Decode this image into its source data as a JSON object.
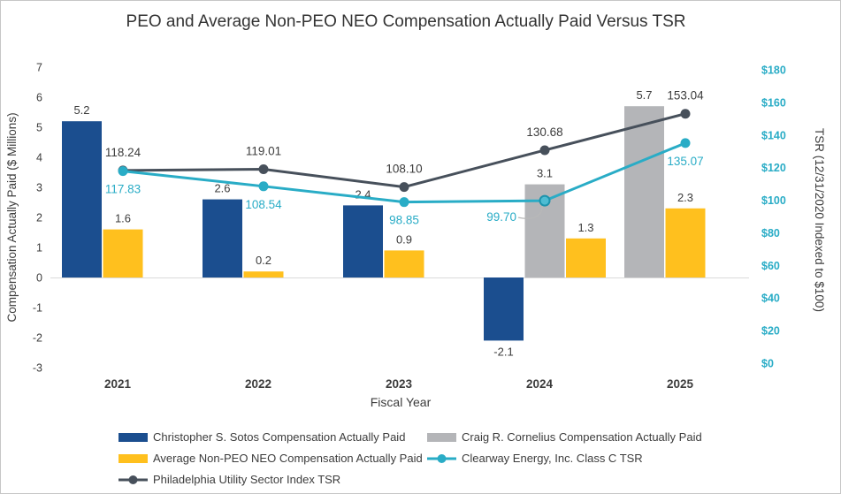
{
  "title": "PEO and Average Non-PEO NEO Compensation Actually Paid Versus TSR",
  "chart_data": {
    "type": "combo-bar-line",
    "categories": [
      "2021",
      "2022",
      "2023",
      "2024",
      "2025"
    ],
    "xlabel": "Fiscal Year",
    "left_axis": {
      "label": "Compensation Actually Paid ($ Millions)",
      "min": -3,
      "max": 7,
      "step": 1
    },
    "right_axis": {
      "label": "TSR (12/31/2020 Indexed to $100)",
      "min": 0,
      "max": 180,
      "step": 20,
      "prefix": "$"
    },
    "bar_series": [
      {
        "name": "Christopher S. Sotos Compensation Actually Paid",
        "color": "#1b4e8f",
        "values": [
          5.2,
          2.6,
          2.4,
          -2.1,
          null
        ]
      },
      {
        "name": "Craig R. Cornelius Compensation Actually Paid",
        "color": "#b4b5b8",
        "values": [
          null,
          null,
          null,
          3.1,
          5.7
        ]
      },
      {
        "name": "Average Non-PEO NEO Compensation Actually Paid",
        "color": "#ffc01e",
        "values": [
          1.6,
          0.2,
          0.9,
          1.3,
          2.3
        ]
      }
    ],
    "line_series": [
      {
        "name": "Philadelphia Utility Sector Index TSR",
        "color": "#47505b",
        "label_color": "#3c3c3c",
        "label_position": "above",
        "values": [
          118.24,
          119.01,
          108.1,
          130.68,
          153.04
        ]
      },
      {
        "name": "Clearway Energy, Inc. Class C TSR",
        "color": "#29acc6",
        "label_color": "#29acc6",
        "label_position": "below",
        "values": [
          117.83,
          108.54,
          98.85,
          99.7,
          135.07
        ]
      }
    ],
    "legend": [
      {
        "label": "Christopher S. Sotos Compensation Actually Paid",
        "type": "bar",
        "color": "#1b4e8f"
      },
      {
        "label": "Craig R. Cornelius Compensation Actually Paid",
        "type": "bar",
        "color": "#b4b5b8"
      },
      {
        "label": "Average Non-PEO NEO Compensation Actually Paid",
        "type": "bar",
        "color": "#ffc01e"
      },
      {
        "label": "Clearway Energy, Inc. Class C TSR",
        "type": "line",
        "color": "#29acc6"
      },
      {
        "label": "Philadelphia Utility Sector Index TSR",
        "type": "line",
        "color": "#47505b"
      }
    ],
    "colors": {
      "tick_text": "#3c3c3c",
      "right_tick_text": "#29acc6",
      "axis_line": "#d9d9d9",
      "leader_line": "#b8b8b8"
    }
  }
}
